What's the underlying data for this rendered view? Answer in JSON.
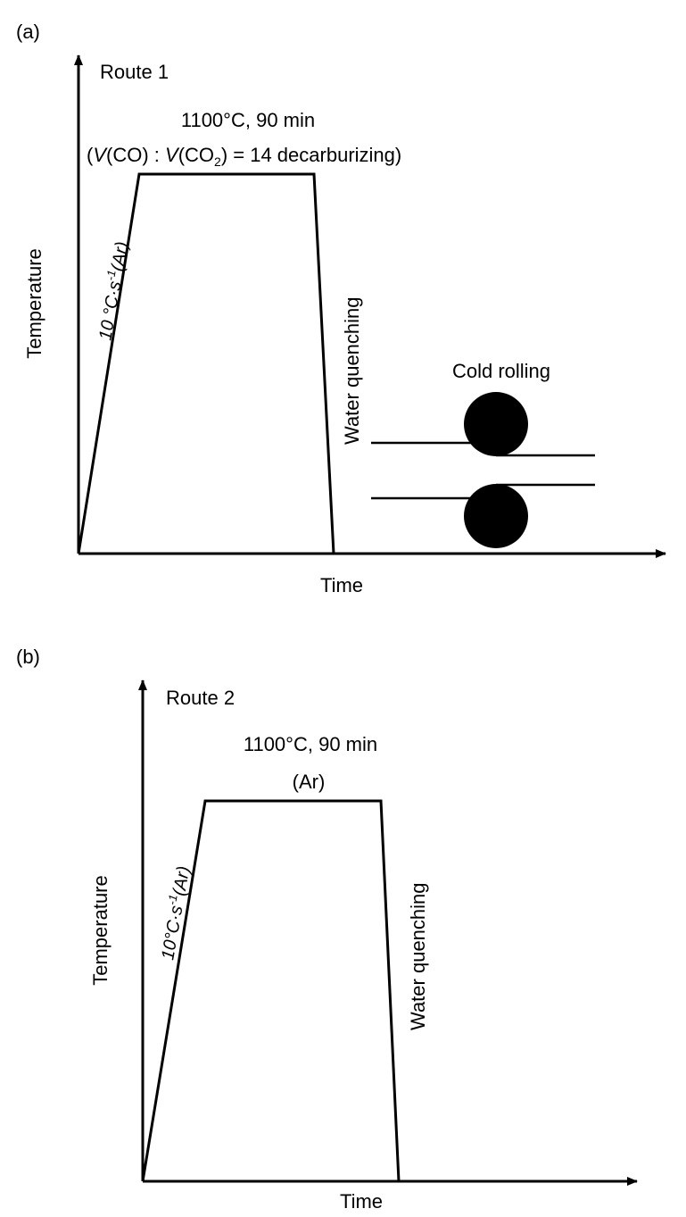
{
  "panel_a": {
    "label": "(a)",
    "route": "Route 1",
    "condition_line1": "1100°C, 90 min",
    "condition_open": "(",
    "condition_v1": "V",
    "condition_co": "(CO) : ",
    "condition_v2": "V",
    "condition_co2": "(CO",
    "condition_sub2": "2",
    "condition_rest": ") = 14 decarburizing)",
    "heating_rate_prefix": "10 °C·s",
    "heating_rate_sup": "-1",
    "heating_rate_suffix": "(Ar)",
    "quench_label": "Water quenching",
    "rolling_label": "Cold rolling",
    "y_axis_label": "Temperature",
    "x_axis_label": "Time"
  },
  "panel_b": {
    "label": "(b)",
    "route": "Route 2",
    "condition_line1": "1100°C, 90 min",
    "condition_line2": "(Ar)",
    "heating_rate_prefix": "10°C·s",
    "heating_rate_sup": "-1",
    "heating_rate_suffix": "(Ar)",
    "quench_label": "Water quenching",
    "y_axis_label": "Temperature",
    "x_axis_label": "Time"
  },
  "colors": {
    "ink": "#000000",
    "background": "#ffffff"
  }
}
